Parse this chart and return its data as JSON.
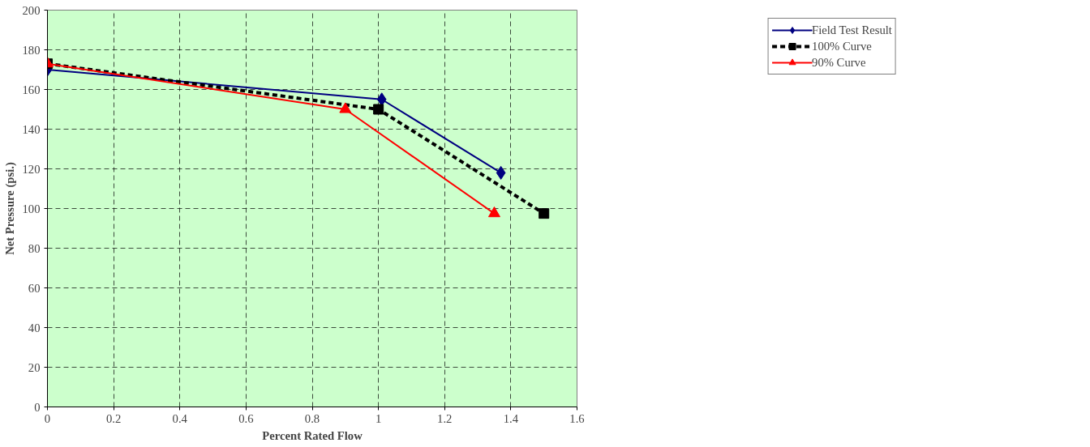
{
  "chart_data": {
    "type": "line",
    "xlabel": "Percent Rated Flow",
    "ylabel": "Net Pressure (psi.)",
    "xlim": [
      0,
      1.6
    ],
    "xticks": [
      0,
      0.2,
      0.4,
      0.6,
      0.8,
      1,
      1.2,
      1.4,
      1.6
    ],
    "ylim": [
      0,
      200
    ],
    "yticks": [
      0,
      20,
      40,
      60,
      80,
      100,
      120,
      140,
      160,
      180,
      200
    ],
    "grid": true,
    "legend": "right",
    "series": [
      {
        "name": "Field Test Result",
        "color": "#000080",
        "x": [
          0,
          1.01,
          1.37
        ],
        "values": [
          170,
          155,
          118
        ],
        "marker": "diamond",
        "line_style": "solid"
      },
      {
        "name": "100% Curve",
        "color": "#000000",
        "x": [
          0,
          1,
          1.5
        ],
        "values": [
          173,
          150,
          97.5
        ],
        "marker": "square",
        "line_style": "dashed"
      },
      {
        "name": "90% Curve",
        "color": "#ff0000",
        "x": [
          0,
          0.9,
          1.35
        ],
        "values": [
          173,
          150,
          97.5
        ],
        "marker": "triangle",
        "line_style": "solid"
      }
    ]
  }
}
